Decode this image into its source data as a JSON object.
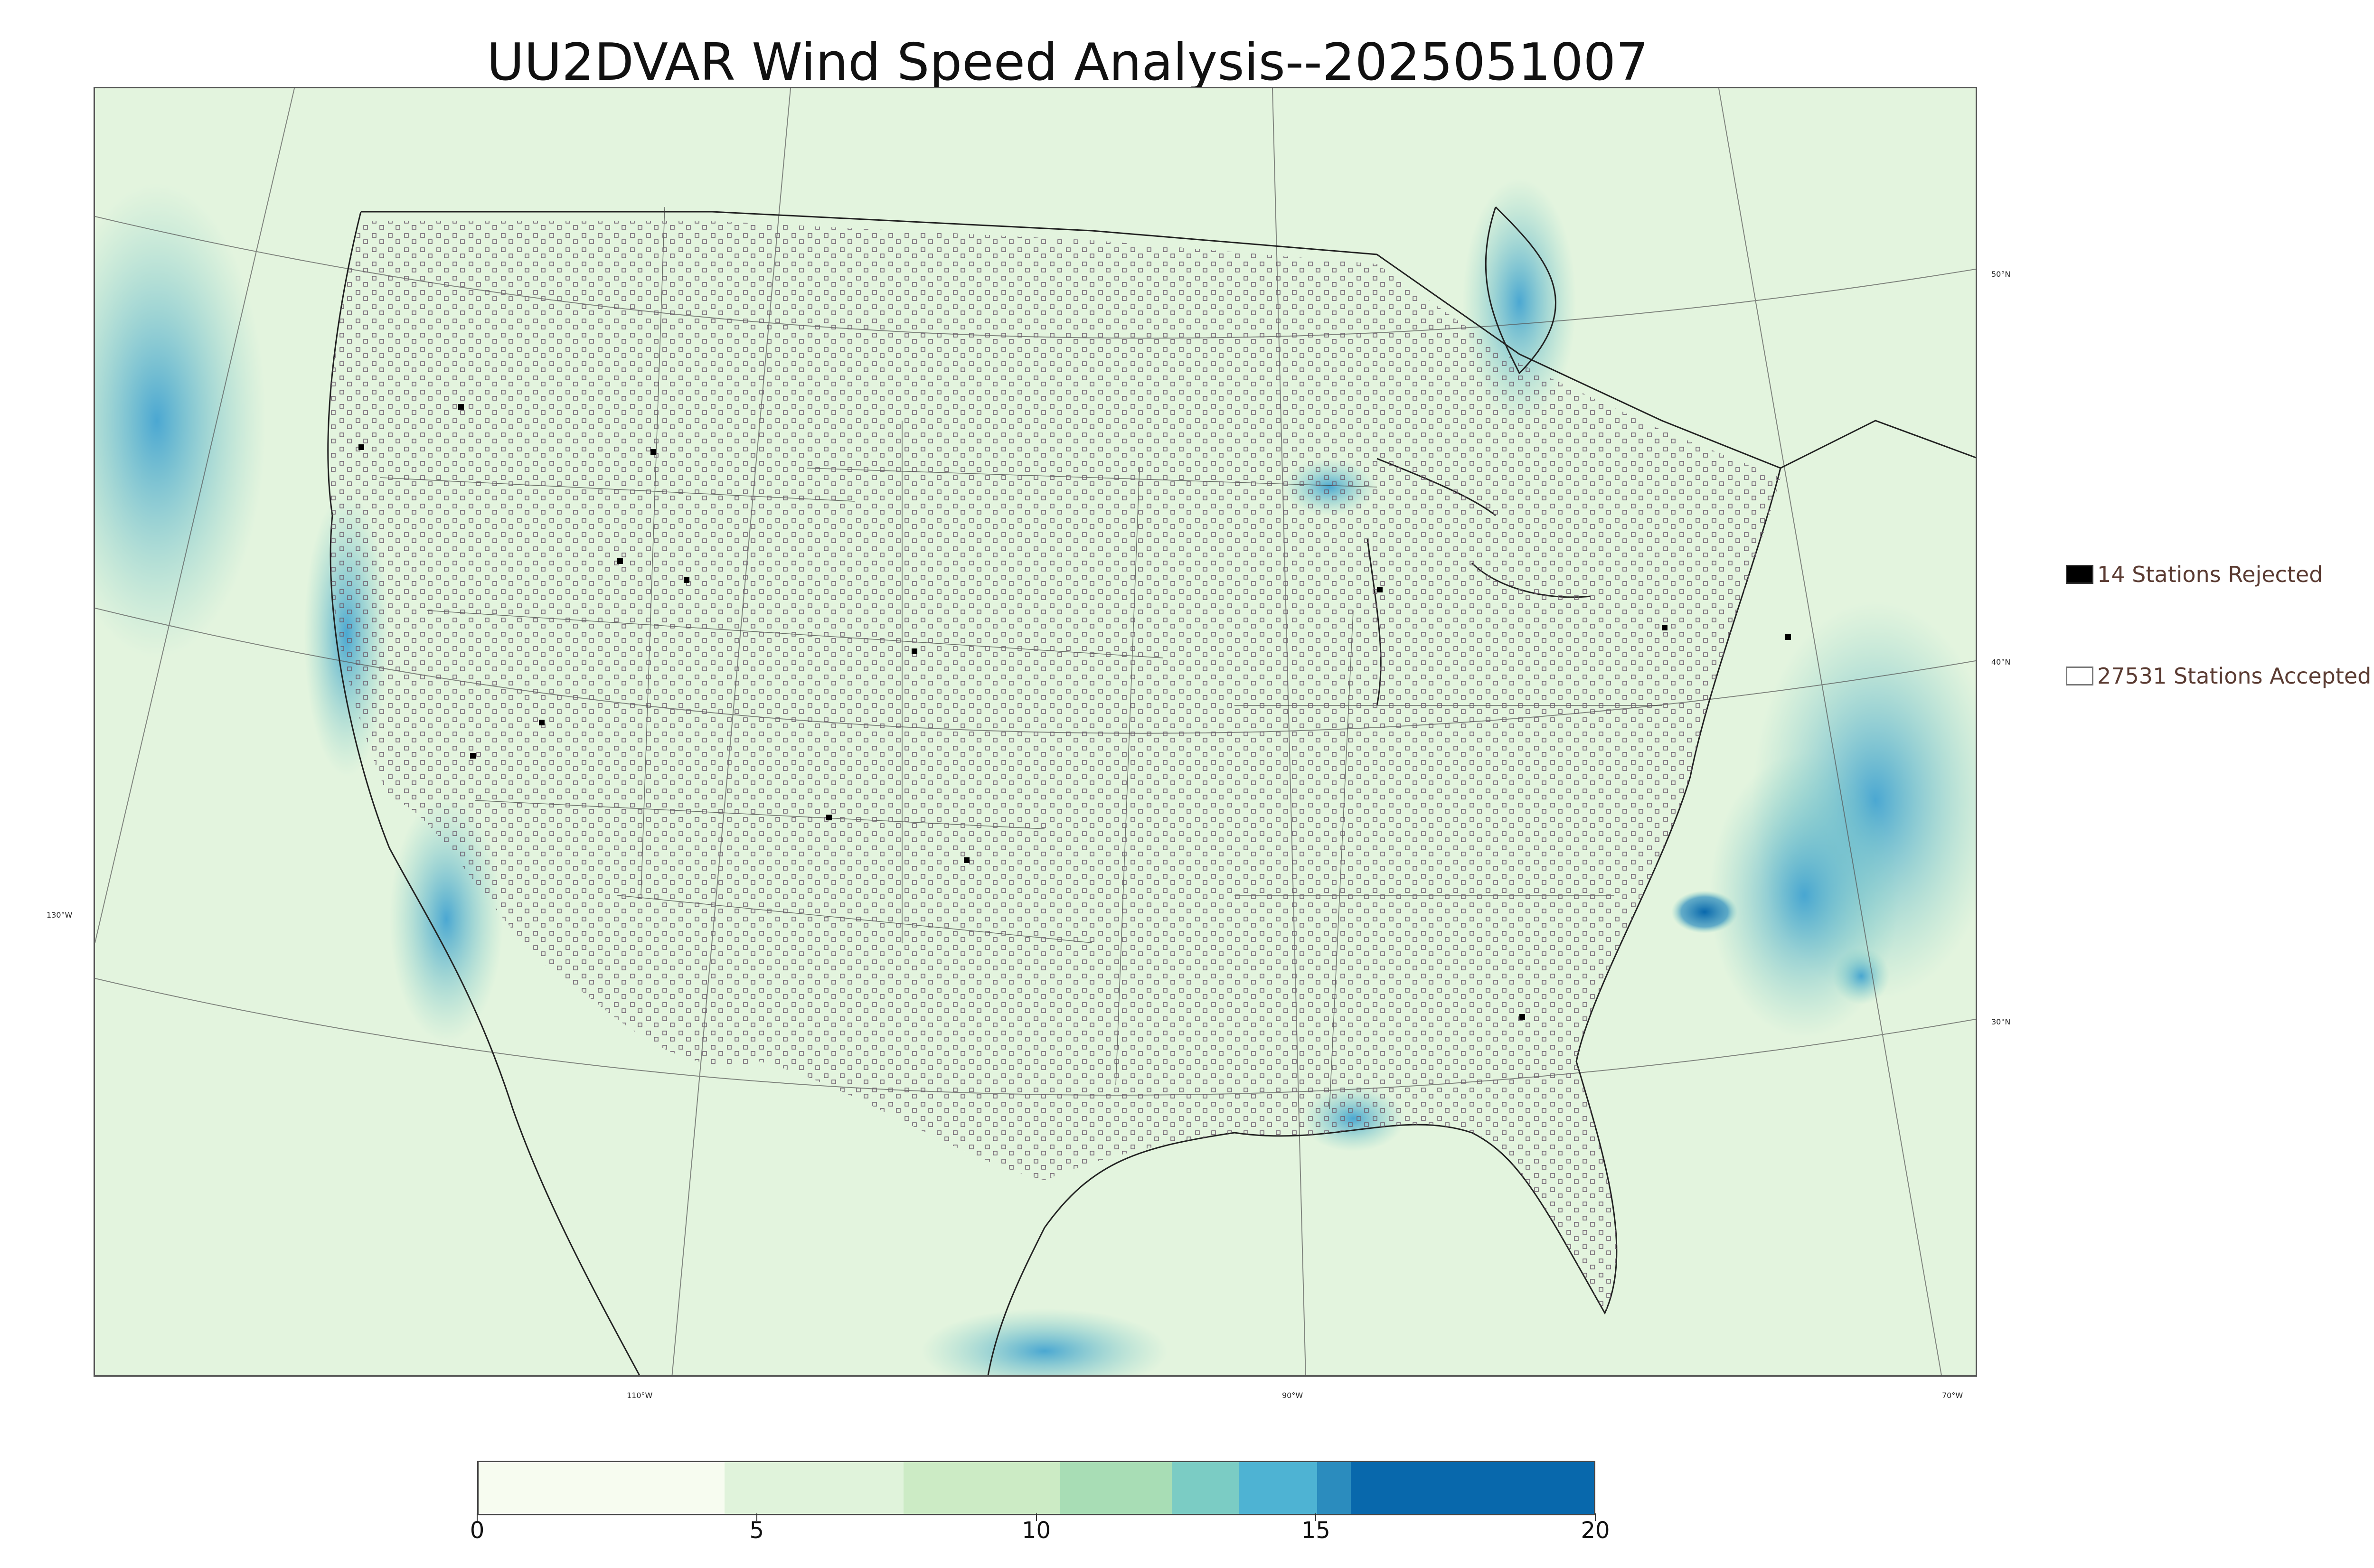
{
  "title": "UU2DVAR Wind Speed Analysis--2025051007",
  "map": {
    "latitude_labels": [
      "50°N",
      "40°N",
      "30°N"
    ],
    "longitude_labels": [
      "130°W",
      "110°W",
      "90°W",
      "70°W"
    ]
  },
  "legend": [
    {
      "label": "14 Stations Rejected",
      "marker": "filled-square"
    },
    {
      "label": "27531 Stations Accepted",
      "marker": "open-square"
    }
  ],
  "colorbar": {
    "ticks": [
      "0",
      "5",
      "10",
      "15",
      "20"
    ],
    "range": [
      0,
      20
    ],
    "colors": [
      "#f7fcf0",
      "#e0f3db",
      "#ccebc5",
      "#a8ddb5",
      "#7bccc4",
      "#4eb3d3",
      "#2b8cbe",
      "#0868ac"
    ]
  },
  "colors": {
    "background_wind": "#e9f7e6",
    "station_marker": "#6b5a6b",
    "legend_text": "#5a3b32"
  }
}
